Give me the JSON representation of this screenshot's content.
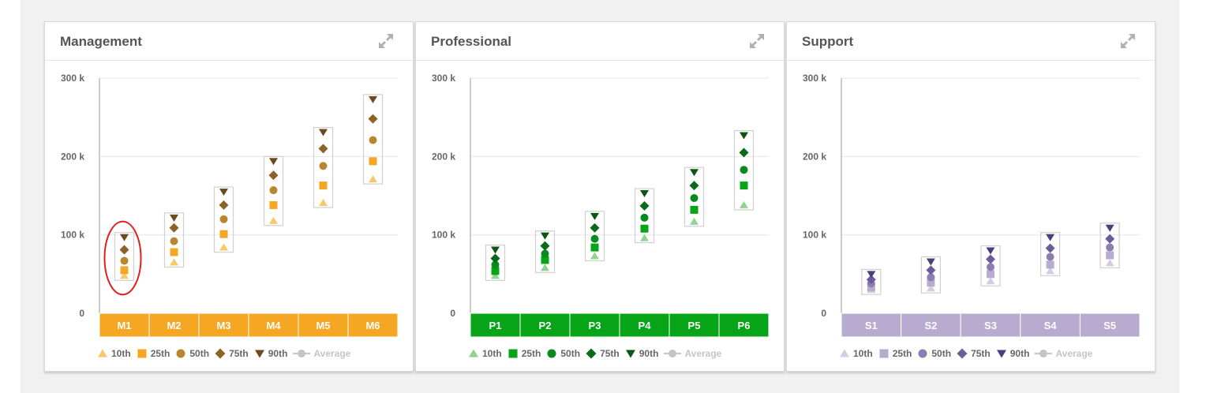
{
  "legend_labels": [
    "10th",
    "25th",
    "50th",
    "75th",
    "90th",
    "Average"
  ],
  "chart_data": [
    {
      "type": "scatter",
      "title": "Management",
      "ylim": [
        0,
        300000
      ],
      "yticks": [
        "0",
        "100 k",
        "200 k",
        "300 k"
      ],
      "grid": true,
      "legend_position": "bottom",
      "categories": [
        "M1",
        "M2",
        "M3",
        "M4",
        "M5",
        "M6"
      ],
      "band_color": "#f5a623",
      "series": [
        {
          "name": "10th",
          "marker": "triangle-up",
          "color": "#f7c96a",
          "values": [
            48000,
            65000,
            84000,
            118000,
            141000,
            171000
          ]
        },
        {
          "name": "25th",
          "marker": "square",
          "color": "#f5a623",
          "values": [
            55000,
            78000,
            101000,
            138000,
            163000,
            194000
          ]
        },
        {
          "name": "50th",
          "marker": "circle",
          "color": "#b8862e",
          "values": [
            67000,
            92000,
            120000,
            157000,
            188000,
            221000
          ]
        },
        {
          "name": "75th",
          "marker": "diamond",
          "color": "#8c6226",
          "values": [
            81000,
            109000,
            138000,
            176000,
            210000,
            248000
          ]
        },
        {
          "name": "90th",
          "marker": "triangle-down",
          "color": "#6b4a1e",
          "values": [
            97000,
            122000,
            155000,
            194000,
            231000,
            273000
          ]
        }
      ],
      "annotation": {
        "type": "ellipse",
        "category": "M1",
        "color": "#e02020"
      }
    },
    {
      "type": "scatter",
      "title": "Professional",
      "ylim": [
        0,
        300000
      ],
      "yticks": [
        "0",
        "100 k",
        "200 k",
        "300 k"
      ],
      "grid": true,
      "legend_position": "bottom",
      "categories": [
        "P1",
        "P2",
        "P3",
        "P4",
        "P5",
        "P6"
      ],
      "band_color": "#07a418",
      "series": [
        {
          "name": "10th",
          "marker": "triangle-up",
          "color": "#8fd48f",
          "values": [
            48000,
            58000,
            73000,
            96000,
            117000,
            138000
          ]
        },
        {
          "name": "25th",
          "marker": "square",
          "color": "#07a418",
          "values": [
            54000,
            68000,
            84000,
            108000,
            132000,
            163000
          ]
        },
        {
          "name": "50th",
          "marker": "circle",
          "color": "#078b1e",
          "values": [
            62000,
            76000,
            95000,
            122000,
            147000,
            183000
          ]
        },
        {
          "name": "75th",
          "marker": "diamond",
          "color": "#0a6a1a",
          "values": [
            70000,
            86000,
            109000,
            137000,
            163000,
            205000
          ]
        },
        {
          "name": "90th",
          "marker": "triangle-down",
          "color": "#0b5515",
          "values": [
            81000,
            99000,
            124000,
            153000,
            180000,
            227000
          ]
        }
      ]
    },
    {
      "type": "scatter",
      "title": "Support",
      "ylim": [
        0,
        300000
      ],
      "yticks": [
        "0",
        "100 k",
        "200 k",
        "300 k"
      ],
      "grid": true,
      "legend_position": "bottom",
      "categories": [
        "S1",
        "S2",
        "S3",
        "S4",
        "S5"
      ],
      "band_color": "#b7abcf",
      "series": [
        {
          "name": "10th",
          "marker": "triangle-up",
          "color": "#d3cce3",
          "values": [
            30000,
            32000,
            41000,
            54000,
            64000
          ]
        },
        {
          "name": "25th",
          "marker": "square",
          "color": "#b7abcf",
          "values": [
            33000,
            39000,
            50000,
            62000,
            74000
          ]
        },
        {
          "name": "50th",
          "marker": "circle",
          "color": "#8c7db3",
          "values": [
            38000,
            46000,
            59000,
            72000,
            84000
          ]
        },
        {
          "name": "75th",
          "marker": "diamond",
          "color": "#6b5d99",
          "values": [
            43000,
            55000,
            69000,
            83000,
            95000
          ]
        },
        {
          "name": "90th",
          "marker": "triangle-down",
          "color": "#4c3f7d",
          "values": [
            50000,
            66000,
            80000,
            97000,
            109000
          ]
        }
      ]
    }
  ]
}
